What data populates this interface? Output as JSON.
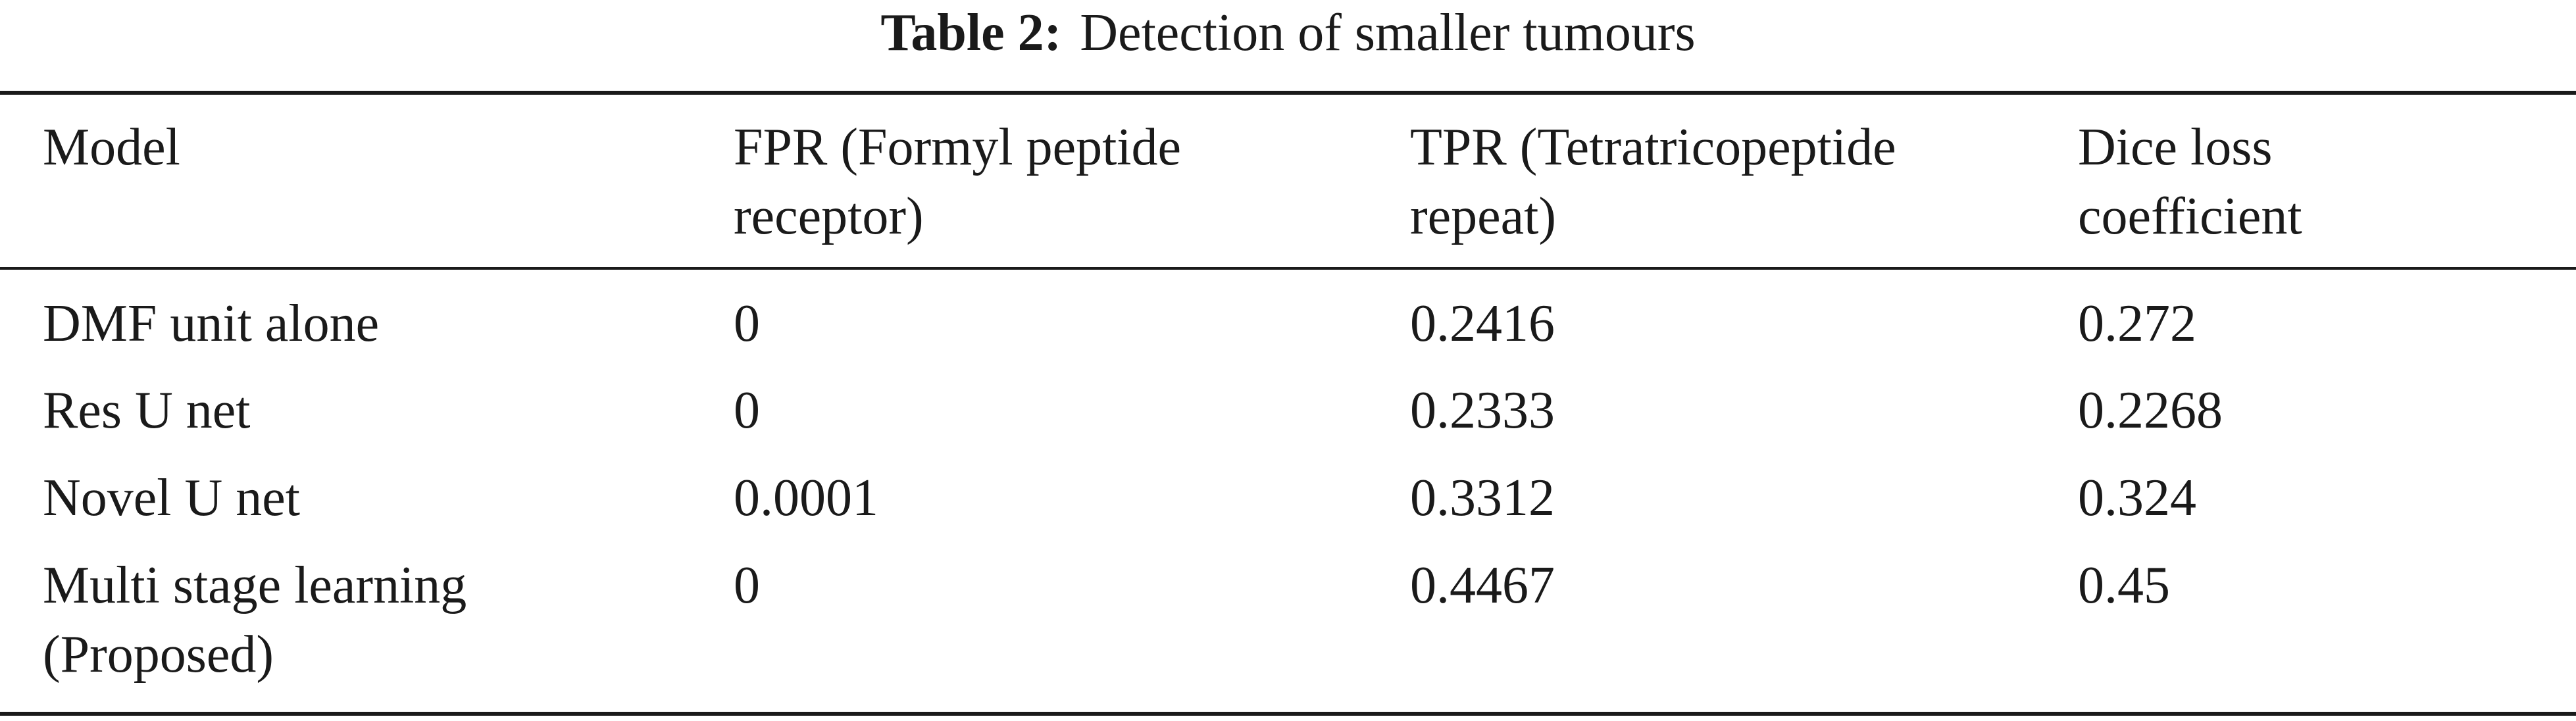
{
  "caption": {
    "label": "Table 2:",
    "text": "Detection of smaller tumours"
  },
  "table": {
    "headers": [
      [
        "Model"
      ],
      [
        "FPR (Formyl peptide",
        "receptor)"
      ],
      [
        "TPR (Tetratricopeptide",
        "repeat)"
      ],
      [
        "Dice loss",
        "coefficient"
      ]
    ],
    "rows": [
      [
        [
          "DMF unit alone"
        ],
        [
          "0"
        ],
        [
          "0.2416"
        ],
        [
          "0.272"
        ]
      ],
      [
        [
          "Res U net"
        ],
        [
          "0"
        ],
        [
          "0.2333"
        ],
        [
          "0.2268"
        ]
      ],
      [
        [
          "Novel U net"
        ],
        [
          "0.0001"
        ],
        [
          "0.3312"
        ],
        [
          "0.324"
        ]
      ],
      [
        [
          "Multi stage learning",
          "(Proposed)"
        ],
        [
          "0"
        ],
        [
          "0.4467"
        ],
        [
          "0.45"
        ]
      ]
    ]
  }
}
